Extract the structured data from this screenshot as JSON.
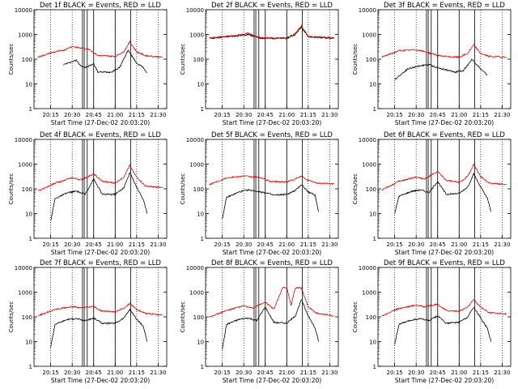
{
  "chart_data": [
    {
      "title": "Det 1f BLACK = Events, RED = LLD",
      "xlabel": "Start Time (27-Dec-02 20:03:20)",
      "ylabel": "Counts/sec",
      "x_ticks": [
        "20:15",
        "20:30",
        "20:45",
        "21:00",
        "21:15",
        "21:30"
      ],
      "y_ticks": [
        "1",
        "10",
        "100",
        "1000",
        "10000"
      ],
      "series": [
        {
          "color": "#000000",
          "values": [
            [
              20.4,
              60
            ],
            [
              20.5,
              80
            ],
            [
              20.55,
              90
            ],
            [
              20.6,
              55
            ],
            [
              20.65,
              45
            ],
            [
              20.75,
              65
            ],
            [
              20.8,
              30
            ],
            [
              20.95,
              30
            ],
            [
              21.05,
              45
            ],
            [
              21.15,
              230
            ],
            [
              21.25,
              70
            ],
            [
              21.33,
              45
            ],
            [
              21.37,
              28
            ]
          ]
        },
        {
          "color": "#e00000",
          "values": [
            [
              20.1,
              120
            ],
            [
              20.25,
              180
            ],
            [
              20.4,
              230
            ],
            [
              20.5,
              330
            ],
            [
              20.6,
              280
            ],
            [
              20.7,
              250
            ],
            [
              20.8,
              140
            ],
            [
              21.0,
              130
            ],
            [
              21.1,
              200
            ],
            [
              21.17,
              500
            ],
            [
              21.25,
              200
            ],
            [
              21.35,
              140
            ],
            [
              21.55,
              120
            ]
          ]
        }
      ]
    },
    {
      "title": "Det 2f BLACK = Events, RED = LLD",
      "xlabel": "Start Time (27-Dec-02 20:03:20)",
      "ylabel": "Counts/sec",
      "x_ticks": [
        "20:15",
        "20:30",
        "20:45",
        "21:00",
        "21:15",
        "21:30"
      ],
      "y_ticks": [
        "1",
        "10",
        "100",
        "1000",
        "10000"
      ],
      "series": [
        {
          "color": "#000000",
          "values": [
            [
              20.1,
              700
            ],
            [
              20.4,
              850
            ],
            [
              20.55,
              1000
            ],
            [
              20.7,
              700
            ],
            [
              21.0,
              700
            ],
            [
              21.1,
              1000
            ],
            [
              21.17,
              2000
            ],
            [
              21.25,
              800
            ],
            [
              21.55,
              700
            ]
          ]
        },
        {
          "color": "#e00000",
          "values": [
            [
              20.1,
              720
            ],
            [
              20.4,
              900
            ],
            [
              20.55,
              1100
            ],
            [
              20.7,
              720
            ],
            [
              21.0,
              720
            ],
            [
              21.1,
              1100
            ],
            [
              21.17,
              2200
            ],
            [
              21.25,
              820
            ],
            [
              21.55,
              720
            ]
          ]
        }
      ]
    },
    {
      "title": "Det 3f BLACK = Events, RED = LLD",
      "xlabel": "Start Time (27-Dec-02 20:03:20)",
      "ylabel": "Counts/sec",
      "x_ticks": [
        "20:15",
        "20:30",
        "20:45",
        "21:00",
        "21:15",
        "21:30"
      ],
      "y_ticks": [
        "1",
        "10",
        "100",
        "1000",
        "10000"
      ],
      "series": [
        {
          "color": "#000000",
          "values": [
            [
              20.25,
              15
            ],
            [
              20.4,
              40
            ],
            [
              20.55,
              55
            ],
            [
              20.65,
              60
            ],
            [
              20.75,
              45
            ],
            [
              20.95,
              30
            ],
            [
              21.05,
              35
            ],
            [
              21.15,
              100
            ],
            [
              21.25,
              40
            ],
            [
              21.33,
              22
            ]
          ]
        },
        {
          "color": "#e00000",
          "values": [
            [
              20.1,
              120
            ],
            [
              20.3,
              220
            ],
            [
              20.5,
              240
            ],
            [
              20.6,
              200
            ],
            [
              20.8,
              130
            ],
            [
              21.0,
              120
            ],
            [
              21.1,
              170
            ],
            [
              21.17,
              380
            ],
            [
              21.25,
              170
            ],
            [
              21.35,
              130
            ],
            [
              21.55,
              120
            ]
          ]
        }
      ]
    },
    {
      "title": "Det 4f BLACK = Events, RED = LLD",
      "xlabel": "Start Time (27-Dec-02 20:03:20)",
      "ylabel": "Counts/sec",
      "x_ticks": [
        "20:15",
        "20:30",
        "20:45",
        "21:00",
        "21:15",
        "21:30"
      ],
      "y_ticks": [
        "1",
        "10",
        "100",
        "1000",
        "10000"
      ],
      "series": [
        {
          "color": "#000000",
          "values": [
            [
              20.25,
              5
            ],
            [
              20.3,
              40
            ],
            [
              20.45,
              70
            ],
            [
              20.55,
              80
            ],
            [
              20.65,
              60
            ],
            [
              20.75,
              250
            ],
            [
              20.85,
              60
            ],
            [
              21.0,
              60
            ],
            [
              21.1,
              110
            ],
            [
              21.17,
              450
            ],
            [
              21.25,
              120
            ],
            [
              21.33,
              35
            ],
            [
              21.37,
              10
            ]
          ]
        },
        {
          "color": "#e00000",
          "values": [
            [
              20.1,
              80
            ],
            [
              20.3,
              170
            ],
            [
              20.5,
              280
            ],
            [
              20.6,
              230
            ],
            [
              20.75,
              400
            ],
            [
              20.85,
              200
            ],
            [
              21.0,
              170
            ],
            [
              21.1,
              300
            ],
            [
              21.17,
              900
            ],
            [
              21.25,
              300
            ],
            [
              21.35,
              130
            ],
            [
              21.55,
              110
            ]
          ]
        }
      ]
    },
    {
      "title": "Det 5f BLACK = Events, RED = LLD",
      "xlabel": "Start Time (27-Dec-02 20:03:20)",
      "ylabel": "Counts/sec",
      "x_ticks": [
        "20:15",
        "20:30",
        "20:45",
        "21:00",
        "21:15",
        "21:30"
      ],
      "y_ticks": [
        "1",
        "10",
        "100",
        "1000",
        "10000"
      ],
      "series": [
        {
          "color": "#000000",
          "values": [
            [
              20.25,
              6
            ],
            [
              20.3,
              45
            ],
            [
              20.45,
              75
            ],
            [
              20.55,
              90
            ],
            [
              20.65,
              80
            ],
            [
              20.75,
              70
            ],
            [
              20.85,
              55
            ],
            [
              21.0,
              60
            ],
            [
              21.1,
              85
            ],
            [
              21.17,
              150
            ],
            [
              21.25,
              75
            ],
            [
              21.33,
              55
            ],
            [
              21.37,
              12
            ]
          ]
        },
        {
          "color": "#e00000",
          "values": [
            [
              20.1,
              150
            ],
            [
              20.3,
              280
            ],
            [
              20.5,
              330
            ],
            [
              20.6,
              300
            ],
            [
              20.7,
              280
            ],
            [
              20.8,
              200
            ],
            [
              21.0,
              190
            ],
            [
              21.1,
              250
            ],
            [
              21.17,
              320
            ],
            [
              21.25,
              220
            ],
            [
              21.35,
              170
            ],
            [
              21.55,
              160
            ]
          ]
        }
      ]
    },
    {
      "title": "Det 6f BLACK = Events, RED = LLD",
      "xlabel": "Start Time (27-Dec-02 20:03:20)",
      "ylabel": "Counts/sec",
      "x_ticks": [
        "20:15",
        "20:30",
        "20:45",
        "21:00",
        "21:15",
        "21:30"
      ],
      "y_ticks": [
        "1",
        "10",
        "100",
        "1000",
        "10000"
      ],
      "series": [
        {
          "color": "#000000",
          "values": [
            [
              20.25,
              10
            ],
            [
              20.3,
              50
            ],
            [
              20.45,
              80
            ],
            [
              20.55,
              90
            ],
            [
              20.65,
              70
            ],
            [
              20.75,
              200
            ],
            [
              20.85,
              60
            ],
            [
              21.0,
              65
            ],
            [
              21.1,
              120
            ],
            [
              21.17,
              400
            ],
            [
              21.25,
              120
            ],
            [
              21.33,
              40
            ],
            [
              21.37,
              12
            ]
          ]
        },
        {
          "color": "#e00000",
          "values": [
            [
              20.1,
              90
            ],
            [
              20.3,
              200
            ],
            [
              20.5,
              300
            ],
            [
              20.6,
              250
            ],
            [
              20.75,
              500
            ],
            [
              20.85,
              220
            ],
            [
              21.0,
              180
            ],
            [
              21.1,
              320
            ],
            [
              21.17,
              950
            ],
            [
              21.25,
              320
            ],
            [
              21.35,
              170
            ],
            [
              21.55,
              150
            ]
          ]
        }
      ]
    },
    {
      "title": "Det 7f BLACK = Events, RED = LLD",
      "xlabel": "Start Time (27-Dec-02 20:03:20)",
      "ylabel": "Counts/sec",
      "x_ticks": [
        "20:15",
        "20:30",
        "20:45",
        "21:00",
        "21:15",
        "21:30"
      ],
      "y_ticks": [
        "1",
        "10",
        "100",
        "1000",
        "10000"
      ],
      "series": [
        {
          "color": "#000000",
          "values": [
            [
              20.25,
              6
            ],
            [
              20.3,
              50
            ],
            [
              20.45,
              80
            ],
            [
              20.55,
              85
            ],
            [
              20.65,
              70
            ],
            [
              20.75,
              90
            ],
            [
              20.85,
              55
            ],
            [
              21.0,
              55
            ],
            [
              21.1,
              90
            ],
            [
              21.17,
              200
            ],
            [
              21.25,
              80
            ],
            [
              21.33,
              40
            ],
            [
              21.37,
              10
            ]
          ]
        },
        {
          "color": "#e00000",
          "values": [
            [
              20.1,
              110
            ],
            [
              20.3,
              200
            ],
            [
              20.5,
              260
            ],
            [
              20.6,
              230
            ],
            [
              20.75,
              260
            ],
            [
              20.85,
              170
            ],
            [
              21.0,
              160
            ],
            [
              21.1,
              220
            ],
            [
              21.17,
              350
            ],
            [
              21.25,
              200
            ],
            [
              21.35,
              140
            ],
            [
              21.55,
              120
            ]
          ]
        }
      ]
    },
    {
      "title": "Det 8f BLACK = Events, RED = LLD",
      "xlabel": "Start Time (27-Dec-02 20:03:20)",
      "ylabel": "Counts/sec",
      "x_ticks": [
        "20:15",
        "20:30",
        "20:45",
        "21:00",
        "21:15",
        "21:30"
      ],
      "y_ticks": [
        "1",
        "10",
        "100",
        "1000",
        "10000"
      ],
      "series": [
        {
          "color": "#000000",
          "values": [
            [
              20.25,
              5
            ],
            [
              20.3,
              50
            ],
            [
              20.45,
              80
            ],
            [
              20.55,
              90
            ],
            [
              20.65,
              70
            ],
            [
              20.75,
              250
            ],
            [
              20.85,
              60
            ],
            [
              21.0,
              55
            ],
            [
              21.1,
              110
            ],
            [
              21.17,
              500
            ],
            [
              21.25,
              110
            ],
            [
              21.33,
              35
            ],
            [
              21.37,
              10
            ]
          ]
        },
        {
          "color": "#e00000",
          "values": [
            [
              20.1,
              100
            ],
            [
              20.3,
              180
            ],
            [
              20.5,
              280
            ],
            [
              20.6,
              220
            ],
            [
              20.75,
              400
            ],
            [
              20.85,
              200
            ],
            [
              20.95,
              1500
            ],
            [
              21.0,
              1500
            ],
            [
              21.05,
              300
            ],
            [
              21.1,
              1500
            ],
            [
              21.17,
              1500
            ],
            [
              21.25,
              250
            ],
            [
              21.35,
              140
            ],
            [
              21.55,
              110
            ]
          ]
        }
      ]
    },
    {
      "title": "Det 9f BLACK = Events, RED = LLD",
      "xlabel": "Start Time (27-Dec-02 20:03:20)",
      "ylabel": "Counts/sec",
      "x_ticks": [
        "20:15",
        "20:30",
        "20:45",
        "21:00",
        "21:15",
        "21:30"
      ],
      "y_ticks": [
        "1",
        "10",
        "100",
        "1000",
        "10000"
      ],
      "series": [
        {
          "color": "#000000",
          "values": [
            [
              20.25,
              8
            ],
            [
              20.3,
              50
            ],
            [
              20.45,
              75
            ],
            [
              20.55,
              85
            ],
            [
              20.65,
              70
            ],
            [
              20.75,
              110
            ],
            [
              20.85,
              55
            ],
            [
              21.0,
              60
            ],
            [
              21.1,
              100
            ],
            [
              21.17,
              250
            ],
            [
              21.25,
              90
            ],
            [
              21.33,
              35
            ],
            [
              21.37,
              10
            ]
          ]
        },
        {
          "color": "#e00000",
          "values": [
            [
              20.1,
              110
            ],
            [
              20.3,
              220
            ],
            [
              20.5,
              300
            ],
            [
              20.6,
              260
            ],
            [
              20.75,
              320
            ],
            [
              20.85,
              180
            ],
            [
              21.0,
              170
            ],
            [
              21.1,
              250
            ],
            [
              21.17,
              500
            ],
            [
              21.25,
              250
            ],
            [
              21.35,
              150
            ],
            [
              21.55,
              130
            ]
          ]
        }
      ]
    }
  ]
}
